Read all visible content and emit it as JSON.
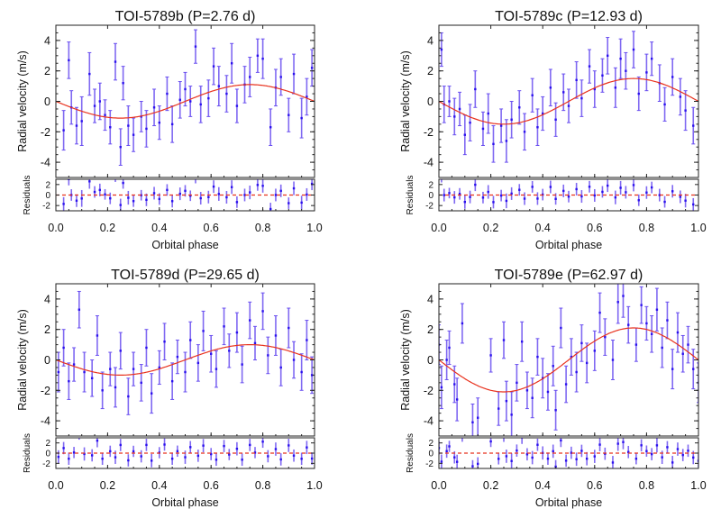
{
  "chart_data": [
    {
      "type": "scatter",
      "title": "TOI-5789b (P=2.76 d)",
      "xlabel": "Orbital phase",
      "ylabel": "Radial velocity (m/s)",
      "residual_label": "Residuals",
      "xlim": [
        0,
        1
      ],
      "ylim": [
        -5,
        5
      ],
      "residual_ylim": [
        -3,
        3
      ],
      "xticks": [
        "0.0",
        "0.2",
        "0.4",
        "0.6",
        "0.8",
        "1.0"
      ],
      "yticks": [
        "-4",
        "-2",
        "0",
        "2",
        "4"
      ],
      "residual_yticks": [
        "-2",
        "0",
        "2"
      ],
      "model": {
        "shape": "sinusoid",
        "semi_amplitude": 1.1
      },
      "points": [
        [
          0.03,
          -1.9,
          1.3
        ],
        [
          0.05,
          2.7,
          1.2
        ],
        [
          0.06,
          -0.4,
          1.1
        ],
        [
          0.08,
          -1.6,
          1.2
        ],
        [
          0.1,
          -1.3,
          1.6
        ],
        [
          0.13,
          1.8,
          1.4
        ],
        [
          0.15,
          -0.3,
          1.1
        ],
        [
          0.17,
          0.0,
          1.2
        ],
        [
          0.19,
          -0.9,
          1.0
        ],
        [
          0.21,
          -1.7,
          1.1
        ],
        [
          0.23,
          2.6,
          1.2
        ],
        [
          0.25,
          -3.0,
          1.2
        ],
        [
          0.26,
          1.2,
          1.1
        ],
        [
          0.28,
          -1.6,
          1.3
        ],
        [
          0.3,
          -2.2,
          1.1
        ],
        [
          0.33,
          -1.0,
          1.0
        ],
        [
          0.35,
          -1.8,
          1.2
        ],
        [
          0.38,
          -0.4,
          1.2
        ],
        [
          0.4,
          -1.4,
          1.1
        ],
        [
          0.43,
          0.5,
          1.1
        ],
        [
          0.45,
          -1.5,
          1.2
        ],
        [
          0.48,
          0.1,
          1.2
        ],
        [
          0.5,
          0.8,
          1.1
        ],
        [
          0.52,
          0.0,
          1.0
        ],
        [
          0.54,
          3.6,
          1.1
        ],
        [
          0.56,
          -0.2,
          1.2
        ],
        [
          0.59,
          0.2,
          1.2
        ],
        [
          0.61,
          2.3,
          1.2
        ],
        [
          0.63,
          1.0,
          1.3
        ],
        [
          0.66,
          0.5,
          1.2
        ],
        [
          0.68,
          2.5,
          1.3
        ],
        [
          0.7,
          -0.3,
          1.1
        ],
        [
          0.73,
          1.1,
          1.2
        ],
        [
          0.75,
          1.6,
          1.3
        ],
        [
          0.78,
          3.0,
          1.1
        ],
        [
          0.8,
          2.8,
          1.3
        ],
        [
          0.83,
          -1.7,
          1.2
        ],
        [
          0.85,
          0.9,
          1.2
        ],
        [
          0.87,
          1.6,
          1.2
        ],
        [
          0.9,
          -0.9,
          1.1
        ],
        [
          0.92,
          1.8,
          1.3
        ],
        [
          0.95,
          -1.1,
          1.3
        ],
        [
          0.97,
          0.3,
          1.2
        ],
        [
          0.99,
          2.2,
          1.2
        ]
      ]
    },
    {
      "type": "scatter",
      "title": "TOI-5789c (P=12.93 d)",
      "xlabel": "Orbital phase",
      "ylabel": "Radial velocity (m/s)",
      "residual_label": "Residuals",
      "xlim": [
        0,
        1
      ],
      "ylim": [
        -5,
        5
      ],
      "residual_ylim": [
        -3,
        3
      ],
      "xticks": [
        "0.0",
        "0.2",
        "0.4",
        "0.6",
        "0.8",
        "1.0"
      ],
      "yticks": [
        "-4",
        "-2",
        "0",
        "2",
        "4"
      ],
      "residual_yticks": [
        "-2",
        "0",
        "2"
      ],
      "model": {
        "shape": "sinusoid",
        "semi_amplitude": 1.5
      },
      "points": [
        [
          0.01,
          3.4,
          1.1
        ],
        [
          0.02,
          -0.2,
          1.2
        ],
        [
          0.04,
          0.0,
          1.0
        ],
        [
          0.06,
          -1.0,
          1.2
        ],
        [
          0.08,
          -0.5,
          1.1
        ],
        [
          0.1,
          -2.2,
          1.3
        ],
        [
          0.12,
          -1.4,
          1.2
        ],
        [
          0.14,
          0.8,
          1.2
        ],
        [
          0.17,
          -1.8,
          1.1
        ],
        [
          0.19,
          -0.8,
          1.3
        ],
        [
          0.21,
          -2.8,
          1.2
        ],
        [
          0.24,
          -1.6,
          1.1
        ],
        [
          0.26,
          -2.6,
          1.4
        ],
        [
          0.28,
          -1.2,
          1.2
        ],
        [
          0.31,
          -0.4,
          1.1
        ],
        [
          0.33,
          -2.0,
          1.2
        ],
        [
          0.36,
          0.4,
          1.1
        ],
        [
          0.38,
          -1.7,
          1.2
        ],
        [
          0.4,
          -0.8,
          1.1
        ],
        [
          0.43,
          0.9,
          1.2
        ],
        [
          0.45,
          -1.2,
          1.1
        ],
        [
          0.48,
          0.6,
          1.2
        ],
        [
          0.5,
          -0.3,
          1.1
        ],
        [
          0.53,
          1.4,
          1.2
        ],
        [
          0.55,
          0.2,
          1.2
        ],
        [
          0.58,
          2.3,
          1.1
        ],
        [
          0.6,
          0.8,
          1.2
        ],
        [
          0.63,
          1.7,
          1.1
        ],
        [
          0.65,
          3.0,
          1.2
        ],
        [
          0.68,
          0.9,
          1.3
        ],
        [
          0.7,
          2.8,
          1.3
        ],
        [
          0.72,
          2.0,
          1.2
        ],
        [
          0.75,
          3.4,
          1.2
        ],
        [
          0.77,
          0.5,
          1.1
        ],
        [
          0.8,
          1.9,
          1.2
        ],
        [
          0.82,
          2.8,
          1.1
        ],
        [
          0.85,
          1.2,
          1.2
        ],
        [
          0.87,
          -0.2,
          1.1
        ],
        [
          0.9,
          1.6,
          1.2
        ],
        [
          0.93,
          0.3,
          1.2
        ],
        [
          0.95,
          -0.6,
          1.3
        ],
        [
          0.98,
          -1.6,
          1.2
        ]
      ]
    },
    {
      "type": "scatter",
      "title": "TOI-5789d (P=29.65 d)",
      "xlabel": "Orbital phase",
      "ylabel": "Radial velocity (m/s)",
      "residual_label": "Residuals",
      "xlim": [
        0,
        1
      ],
      "ylim": [
        -5,
        5
      ],
      "residual_ylim": [
        -3,
        3
      ],
      "xticks": [
        "0.0",
        "0.2",
        "0.4",
        "0.6",
        "0.8",
        "1.0"
      ],
      "yticks": [
        "-4",
        "-2",
        "0",
        "2",
        "4"
      ],
      "residual_yticks": [
        "-2",
        "0",
        "2"
      ],
      "model": {
        "shape": "sinusoid",
        "semi_amplitude": 1.0
      },
      "points": [
        [
          0.01,
          -0.8,
          1.3
        ],
        [
          0.03,
          0.8,
          1.2
        ],
        [
          0.05,
          -1.4,
          1.2
        ],
        [
          0.07,
          -0.3,
          1.1
        ],
        [
          0.09,
          3.3,
          1.2
        ],
        [
          0.11,
          -0.8,
          1.3
        ],
        [
          0.14,
          -1.2,
          1.2
        ],
        [
          0.16,
          1.6,
          1.3
        ],
        [
          0.18,
          -2.0,
          1.2
        ],
        [
          0.21,
          -0.6,
          1.1
        ],
        [
          0.23,
          -1.8,
          1.3
        ],
        [
          0.25,
          0.6,
          1.2
        ],
        [
          0.28,
          -2.4,
          1.2
        ],
        [
          0.3,
          -0.6,
          1.1
        ],
        [
          0.33,
          -1.5,
          1.2
        ],
        [
          0.35,
          0.8,
          1.2
        ],
        [
          0.37,
          -2.2,
          1.3
        ],
        [
          0.4,
          -0.5,
          1.1
        ],
        [
          0.42,
          1.2,
          1.2
        ],
        [
          0.45,
          -1.4,
          1.2
        ],
        [
          0.47,
          0.2,
          1.1
        ],
        [
          0.5,
          -0.8,
          1.3
        ],
        [
          0.52,
          1.3,
          1.2
        ],
        [
          0.55,
          -0.2,
          1.2
        ],
        [
          0.57,
          1.9,
          1.3
        ],
        [
          0.6,
          0.4,
          1.2
        ],
        [
          0.62,
          -0.6,
          1.2
        ],
        [
          0.65,
          2.2,
          1.2
        ],
        [
          0.67,
          0.6,
          1.1
        ],
        [
          0.7,
          1.8,
          1.3
        ],
        [
          0.72,
          -0.3,
          1.2
        ],
        [
          0.75,
          2.6,
          1.2
        ],
        [
          0.77,
          1.1,
          1.1
        ],
        [
          0.8,
          3.2,
          1.2
        ],
        [
          0.82,
          0.3,
          1.2
        ],
        [
          0.85,
          1.6,
          1.3
        ],
        [
          0.87,
          -0.5,
          1.2
        ],
        [
          0.9,
          2.1,
          1.3
        ],
        [
          0.92,
          0.0,
          1.2
        ],
        [
          0.95,
          -0.8,
          1.2
        ],
        [
          0.97,
          1.3,
          1.3
        ],
        [
          0.99,
          -1.0,
          1.2
        ]
      ]
    },
    {
      "type": "scatter",
      "title": "TOI-5789e (P=62.97 d)",
      "xlabel": "Orbital phase",
      "ylabel": "Radial velocity (m/s)",
      "residual_label": "Residuals",
      "xlim": [
        0,
        1
      ],
      "ylim": [
        -5,
        5
      ],
      "residual_ylim": [
        -3,
        3
      ],
      "xticks": [
        "0.0",
        "0.2",
        "0.4",
        "0.6",
        "0.8",
        "1.0"
      ],
      "yticks": [
        "-4",
        "-2",
        "0",
        "2",
        "4"
      ],
      "residual_yticks": [
        "-2",
        "0",
        "2"
      ],
      "model": {
        "shape": "sinusoid",
        "semi_amplitude": 2.1
      },
      "points": [
        [
          0.0,
          1.0,
          1.3
        ],
        [
          0.01,
          -1.8,
          1.4
        ],
        [
          0.03,
          0.0,
          1.3
        ],
        [
          0.04,
          0.8,
          1.1
        ],
        [
          0.06,
          -1.6,
          1.2
        ],
        [
          0.07,
          -2.6,
          1.4
        ],
        [
          0.09,
          2.4,
          1.3
        ],
        [
          0.13,
          -4.1,
          1.2
        ],
        [
          0.15,
          -3.8,
          1.3
        ],
        [
          0.2,
          0.3,
          1.1
        ],
        [
          0.23,
          -3.2,
          1.1
        ],
        [
          0.25,
          1.3,
          1.2
        ],
        [
          0.26,
          -2.7,
          1.3
        ],
        [
          0.28,
          -3.6,
          1.5
        ],
        [
          0.3,
          -1.5,
          1.2
        ],
        [
          0.32,
          1.2,
          1.3
        ],
        [
          0.34,
          -2.0,
          1.2
        ],
        [
          0.36,
          -2.5,
          1.3
        ],
        [
          0.38,
          0.2,
          1.2
        ],
        [
          0.4,
          -1.2,
          1.3
        ],
        [
          0.42,
          -2.1,
          1.2
        ],
        [
          0.44,
          -0.4,
          1.3
        ],
        [
          0.45,
          -3.3,
          1.3
        ],
        [
          0.47,
          2.1,
          1.3
        ],
        [
          0.49,
          -1.6,
          1.2
        ],
        [
          0.51,
          0.2,
          1.2
        ],
        [
          0.53,
          -0.8,
          1.3
        ],
        [
          0.55,
          1.1,
          1.2
        ],
        [
          0.57,
          -0.2,
          1.3
        ],
        [
          0.6,
          0.6,
          1.3
        ],
        [
          0.62,
          3.1,
          1.3
        ],
        [
          0.64,
          1.5,
          1.2
        ],
        [
          0.67,
          0.0,
          1.3
        ],
        [
          0.69,
          3.8,
          1.4
        ],
        [
          0.71,
          4.2,
          1.4
        ],
        [
          0.73,
          2.3,
          1.2
        ],
        [
          0.76,
          1.0,
          1.1
        ],
        [
          0.78,
          3.6,
          1.2
        ],
        [
          0.8,
          2.4,
          1.1
        ],
        [
          0.82,
          1.7,
          1.2
        ],
        [
          0.84,
          3.3,
          1.4
        ],
        [
          0.86,
          0.8,
          1.3
        ],
        [
          0.88,
          2.6,
          1.2
        ],
        [
          0.9,
          -0.6,
          1.3
        ],
        [
          0.92,
          1.8,
          1.3
        ],
        [
          0.94,
          0.4,
          1.2
        ],
        [
          0.96,
          1.0,
          1.2
        ],
        [
          0.98,
          -0.6,
          1.3
        ],
        [
          1.0,
          -1.5,
          1.3
        ]
      ]
    }
  ],
  "colors": {
    "points": "#2a10ee",
    "errorbar": "#6a50f0",
    "model": "#e8321e",
    "axes": "#222222"
  }
}
